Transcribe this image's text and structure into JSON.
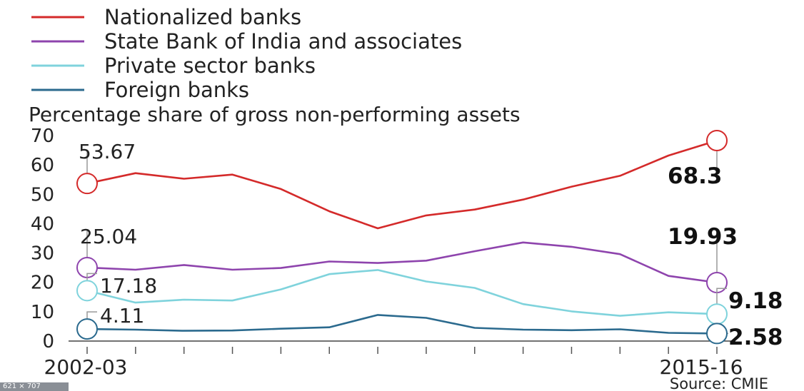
{
  "chart_data": {
    "type": "line",
    "title": "Percentage share of gross non-performing assets",
    "source": "Source:  CMIE",
    "x_first_label": "2002-03",
    "x_last_label": "2015-16",
    "x_count": 14,
    "ylim": [
      0,
      70
    ],
    "yticks": [
      "0",
      "10",
      "20",
      "30",
      "40",
      "50",
      "60",
      "70"
    ],
    "grid": false,
    "legend_position": "top-left",
    "series": [
      {
        "name": "Nationalized banks",
        "color": "#d42a2a",
        "values": [
          53.67,
          57.2,
          55.3,
          56.7,
          51.8,
          44.2,
          38.4,
          42.8,
          44.8,
          48.2,
          52.6,
          56.3,
          63.2,
          68.3
        ],
        "start_label": "53.67",
        "end_label": "68.3"
      },
      {
        "name": "State Bank of India and associates",
        "color": "#8e44ad",
        "values": [
          25.04,
          24.3,
          25.9,
          24.3,
          24.9,
          27.1,
          26.6,
          27.4,
          30.6,
          33.6,
          32.1,
          29.6,
          22.2,
          19.93
        ],
        "start_label": "25.04",
        "end_label": "19.93"
      },
      {
        "name": "Private sector banks",
        "color": "#7fd3dc",
        "values": [
          17.18,
          13.1,
          14.1,
          13.8,
          17.6,
          22.8,
          24.2,
          20.3,
          18.1,
          12.6,
          10.1,
          8.6,
          9.8,
          9.18
        ],
        "start_label": "17.18",
        "end_label": "9.18"
      },
      {
        "name": "Foreign banks",
        "color": "#2b6a8e",
        "values": [
          4.11,
          3.9,
          3.5,
          3.6,
          4.2,
          4.7,
          8.9,
          7.9,
          4.5,
          3.9,
          3.7,
          4.0,
          2.8,
          2.58
        ],
        "start_label": "4.11",
        "end_label": "2.58"
      }
    ]
  },
  "thumbnail_badge": "621 × 707"
}
